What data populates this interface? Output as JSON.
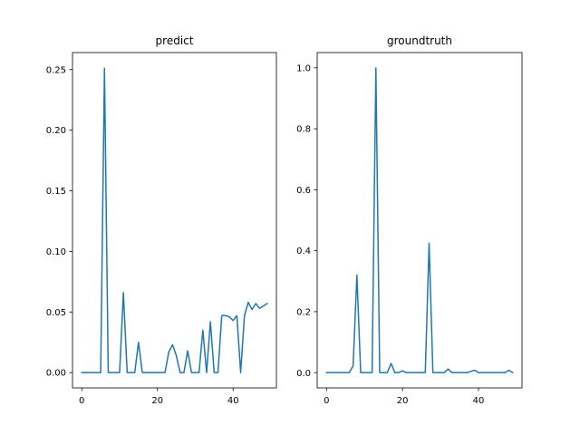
{
  "chart_data": [
    {
      "type": "line",
      "title": "predict",
      "xlabel": "",
      "ylabel": "",
      "xlim": [
        -2.45,
        51.45
      ],
      "ylim": [
        -0.0126,
        0.264
      ],
      "xticks": [
        0,
        20,
        40
      ],
      "yticks": [
        0.0,
        0.05,
        0.1,
        0.15,
        0.2,
        0.25
      ],
      "ytick_labels": [
        "0.00",
        "0.05",
        "0.10",
        "0.15",
        "0.20",
        "0.25"
      ],
      "grid": false,
      "color": "#1f77b4",
      "x": [
        0,
        1,
        2,
        3,
        4,
        5,
        6,
        7,
        8,
        9,
        10,
        11,
        12,
        13,
        14,
        15,
        16,
        17,
        18,
        19,
        20,
        21,
        22,
        23,
        24,
        25,
        26,
        27,
        28,
        29,
        30,
        31,
        32,
        33,
        34,
        35,
        36,
        37,
        38,
        39,
        40,
        41,
        42,
        43,
        44,
        45,
        46,
        47,
        48,
        49
      ],
      "values": [
        0,
        0,
        0,
        0,
        0,
        0,
        0.251,
        0,
        0,
        0,
        0,
        0.066,
        0,
        0,
        0,
        0.025,
        0,
        0,
        0,
        0,
        0,
        0,
        0,
        0.017,
        0.023,
        0.014,
        0,
        0,
        0.018,
        0,
        0,
        0,
        0.035,
        0,
        0.042,
        0,
        0,
        0.047,
        0.047,
        0.046,
        0.043,
        0.047,
        0,
        0.047,
        0.058,
        0.052,
        0.057,
        0.053,
        0.055,
        0.057
      ]
    },
    {
      "type": "line",
      "title": "groundtruth",
      "xlabel": "",
      "ylabel": "",
      "xlim": [
        -2.45,
        51.45
      ],
      "ylim": [
        -0.05,
        1.05
      ],
      "xticks": [
        0,
        20,
        40
      ],
      "yticks": [
        0.0,
        0.2,
        0.4,
        0.6,
        0.8,
        1.0
      ],
      "ytick_labels": [
        "0.0",
        "0.2",
        "0.4",
        "0.6",
        "0.8",
        "1.0"
      ],
      "grid": false,
      "color": "#1f77b4",
      "x": [
        0,
        1,
        2,
        3,
        4,
        5,
        6,
        7,
        8,
        9,
        10,
        11,
        12,
        13,
        14,
        15,
        16,
        17,
        18,
        19,
        20,
        21,
        22,
        23,
        24,
        25,
        26,
        27,
        28,
        29,
        30,
        31,
        32,
        33,
        34,
        35,
        36,
        37,
        38,
        39,
        40,
        41,
        42,
        43,
        44,
        45,
        46,
        47,
        48,
        49
      ],
      "values": [
        0,
        0,
        0,
        0,
        0,
        0,
        0,
        0.022,
        0.32,
        0,
        0,
        0,
        0,
        1.0,
        0,
        0,
        0,
        0.03,
        0,
        0,
        0.006,
        0,
        0,
        0,
        0,
        0,
        0,
        0.425,
        0,
        0,
        0,
        0,
        0.012,
        0,
        0,
        0,
        0,
        0,
        0.004,
        0.008,
        0,
        0,
        0,
        0,
        0,
        0,
        0,
        0,
        0.008,
        0
      ]
    }
  ]
}
